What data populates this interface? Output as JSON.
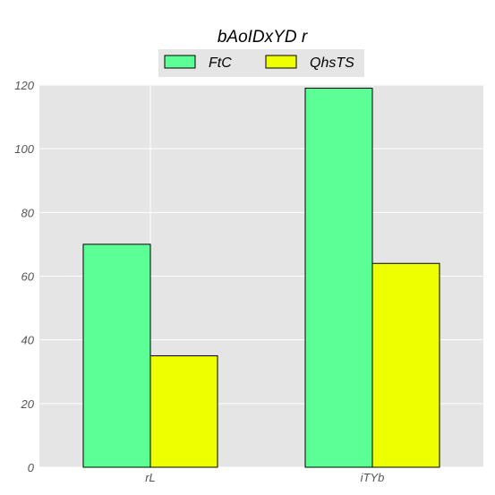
{
  "chart_data": {
    "type": "bar",
    "title": "bAoIDxYD r",
    "categories": [
      "rL",
      "iTYb"
    ],
    "series": [
      {
        "name": "FtC",
        "values": [
          70,
          119
        ],
        "color": "#5cff96"
      },
      {
        "name": "QhsTS",
        "values": [
          35,
          64
        ],
        "color": "#eeff00"
      }
    ],
    "xlabel": "",
    "ylabel": "",
    "ylim": [
      0,
      120
    ],
    "yticks": [
      0,
      20,
      40,
      60,
      80,
      100,
      120
    ],
    "grid": true,
    "legend_position": "top-center",
    "background_color": "#e5e5e5"
  }
}
